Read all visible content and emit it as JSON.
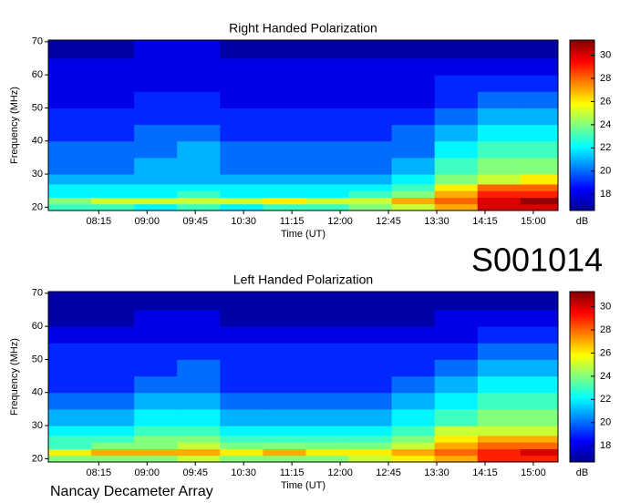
{
  "id_label": "S001014",
  "footer": "Nancay Decameter Array",
  "chart_data": [
    {
      "type": "heatmap",
      "title": "Right Handed Polarization",
      "xlabel": "Time (UT)",
      "ylabel": "Frequency (MHz)",
      "clabel": "dB",
      "xlim": [
        "07:28",
        "15:23"
      ],
      "xticks": [
        "08:15",
        "09:00",
        "09:45",
        "10:30",
        "11:15",
        "12:00",
        "12:45",
        "13:30",
        "14:15",
        "15:00"
      ],
      "ylim": [
        19,
        70.5
      ],
      "yticks": [
        20,
        30,
        40,
        50,
        60,
        70
      ],
      "zlim": [
        16.6,
        31.3
      ],
      "cticks": [
        18,
        20,
        22,
        24,
        26,
        28,
        30
      ],
      "colormap": [
        "#00008f",
        "#0000ff",
        "#0080ff",
        "#00ffff",
        "#80ff80",
        "#ffff00",
        "#ff8000",
        "#ff0000",
        "#800000"
      ],
      "x": [
        "07:28",
        "08:08",
        "08:48",
        "09:28",
        "10:08",
        "10:48",
        "11:28",
        "12:08",
        "12:48",
        "13:28",
        "14:08",
        "14:48"
      ],
      "y": [
        19,
        21,
        23,
        25,
        27,
        30,
        35,
        40,
        45,
        50,
        55,
        60,
        65
      ],
      "values": [
        [
          23,
          23,
          22,
          23,
          22,
          23,
          23,
          24,
          25,
          27,
          30,
          30
        ],
        [
          24,
          25,
          25,
          25,
          25,
          26,
          25,
          25,
          27,
          28,
          30,
          31
        ],
        [
          22,
          22,
          22,
          23,
          22,
          22,
          22,
          23,
          24,
          27,
          29,
          29
        ],
        [
          22,
          22,
          22,
          22,
          22,
          22,
          22,
          22,
          23,
          26,
          28,
          28
        ],
        [
          21,
          21,
          21,
          21,
          21,
          21,
          21,
          21,
          22,
          24,
          25,
          26
        ],
        [
          20,
          20,
          21,
          21,
          20,
          20,
          20,
          20,
          21,
          23,
          24,
          24
        ],
        [
          20,
          20,
          20,
          21,
          20,
          20,
          20,
          20,
          20,
          22,
          23,
          23
        ],
        [
          19,
          19,
          20,
          20,
          19,
          19,
          19,
          19,
          20,
          21,
          22,
          22
        ],
        [
          19,
          19,
          19,
          19,
          19,
          19,
          19,
          19,
          19,
          20,
          21,
          21
        ],
        [
          18,
          18,
          19,
          19,
          18,
          18,
          18,
          18,
          18,
          19,
          20,
          20
        ],
        [
          18,
          18,
          18,
          18,
          18,
          18,
          18,
          18,
          18,
          19,
          19,
          19
        ],
        [
          18,
          18,
          18,
          18,
          18,
          18,
          18,
          18,
          18,
          18,
          18,
          18
        ],
        [
          17,
          17,
          18,
          18,
          17,
          17,
          17,
          17,
          17,
          17,
          17,
          17
        ]
      ]
    },
    {
      "type": "heatmap",
      "title": "Left Handed Polarization",
      "xlabel": "Time (UT)",
      "ylabel": "Frequency (MHz)",
      "clabel": "dB",
      "xlim": [
        "07:28",
        "15:23"
      ],
      "xticks": [
        "08:15",
        "09:00",
        "09:45",
        "10:30",
        "11:15",
        "12:00",
        "12:45",
        "13:30",
        "14:15",
        "15:00"
      ],
      "ylim": [
        19,
        70.5
      ],
      "yticks": [
        20,
        30,
        40,
        50,
        60,
        70
      ],
      "zlim": [
        16.6,
        31.3
      ],
      "cticks": [
        18,
        20,
        22,
        24,
        26,
        28,
        30
      ],
      "colormap": [
        "#00008f",
        "#0000ff",
        "#0080ff",
        "#00ffff",
        "#80ff80",
        "#ffff00",
        "#ff8000",
        "#ff0000",
        "#800000"
      ],
      "x": [
        "07:28",
        "08:08",
        "08:48",
        "09:28",
        "10:08",
        "10:48",
        "11:28",
        "12:08",
        "12:48",
        "13:28",
        "14:08",
        "14:48"
      ],
      "y": [
        19,
        21,
        23,
        25,
        27,
        30,
        35,
        40,
        45,
        50,
        55,
        60,
        65
      ],
      "values": [
        [
          24,
          24,
          24,
          25,
          24,
          24,
          24,
          25,
          26,
          27,
          29,
          29
        ],
        [
          26,
          27,
          27,
          27,
          26,
          27,
          26,
          26,
          27,
          28,
          29,
          30
        ],
        [
          23,
          24,
          24,
          25,
          24,
          24,
          24,
          24,
          25,
          27,
          28,
          28
        ],
        [
          23,
          23,
          24,
          24,
          23,
          23,
          23,
          23,
          24,
          26,
          27,
          27
        ],
        [
          22,
          22,
          23,
          23,
          22,
          22,
          22,
          22,
          23,
          25,
          25,
          25
        ],
        [
          21,
          21,
          22,
          22,
          21,
          21,
          21,
          21,
          22,
          23,
          24,
          24
        ],
        [
          20,
          20,
          21,
          21,
          20,
          20,
          20,
          20,
          21,
          22,
          23,
          23
        ],
        [
          19,
          19,
          20,
          20,
          19,
          19,
          19,
          19,
          20,
          21,
          22,
          22
        ],
        [
          19,
          19,
          19,
          20,
          19,
          19,
          19,
          19,
          19,
          20,
          21,
          21
        ],
        [
          19,
          19,
          19,
          19,
          19,
          19,
          19,
          19,
          19,
          19,
          20,
          20
        ],
        [
          18,
          18,
          18,
          18,
          18,
          18,
          18,
          18,
          18,
          18,
          19,
          19
        ],
        [
          17,
          17,
          18,
          18,
          17,
          17,
          17,
          17,
          17,
          18,
          18,
          18
        ],
        [
          17,
          17,
          17,
          17,
          17,
          17,
          17,
          17,
          17,
          17,
          17,
          17
        ]
      ]
    }
  ]
}
